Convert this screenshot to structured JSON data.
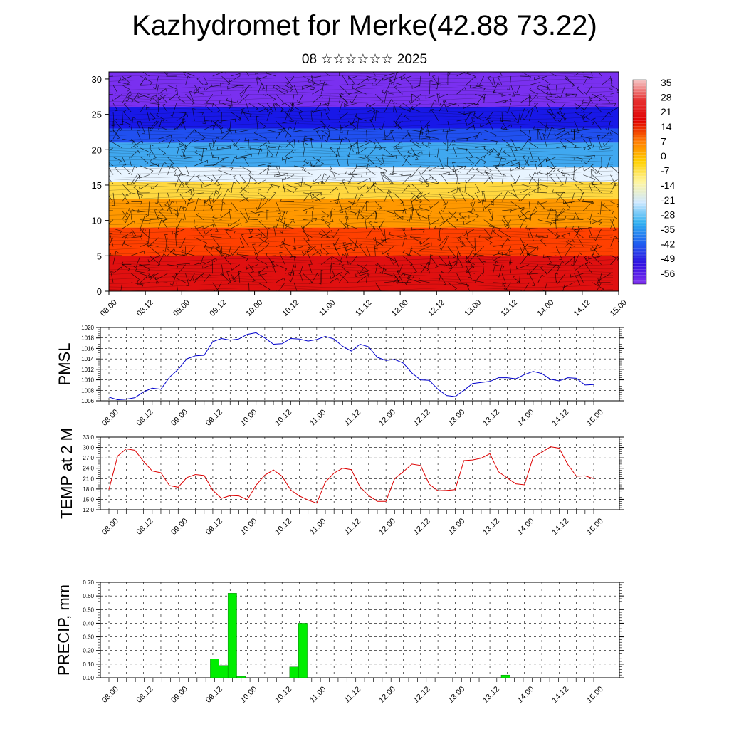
{
  "header": {
    "title": "Kazhydromet for Merke(42.88 73.22)",
    "subtitle": "08 ☆☆☆☆☆☆ 2025"
  },
  "chart_data": [
    {
      "type": "heatmap",
      "y_ticks": [
        0,
        5,
        10,
        15,
        20,
        25,
        30
      ],
      "ylim": [
        0,
        31
      ],
      "x_tick_labels": [
        "08.00",
        "08.12",
        "09.00",
        "09.12",
        "10.00",
        "10.12",
        "11.00",
        "11.12",
        "12.00",
        "12.12",
        "13.00",
        "13.12",
        "14.00",
        "14.12",
        "15.00"
      ],
      "colorbar_labels": [
        "35",
        "28",
        "21",
        "14",
        "7",
        "0",
        "-7",
        "-14",
        "-21",
        "-28",
        "-35",
        "-42",
        "-49",
        "-56"
      ],
      "colorbar_colors": [
        "#f5c8c8",
        "#e63030",
        "#e00000",
        "#ff7a00",
        "#ffd000",
        "#fff5a0",
        "#cfe8ff",
        "#30b0f0",
        "#2060f0",
        "#3010e0",
        "#8030f0"
      ],
      "color_bands": [
        {
          "from": 0,
          "to": 5,
          "color": "#e01010"
        },
        {
          "from": 5,
          "to": 9,
          "color": "#ff4000"
        },
        {
          "from": 9,
          "to": 13,
          "color": "#ff9800"
        },
        {
          "from": 13,
          "to": 15.5,
          "color": "#ffd840"
        },
        {
          "from": 15.5,
          "to": 17.5,
          "color": "#e8f4ff"
        },
        {
          "from": 17.5,
          "to": 21,
          "color": "#40a8f0"
        },
        {
          "from": 21,
          "to": 23,
          "color": "#2050f0"
        },
        {
          "from": 23,
          "to": 26,
          "color": "#1818e8"
        },
        {
          "from": 26,
          "to": 31,
          "color": "#7a30f0"
        }
      ]
    },
    {
      "type": "line",
      "ylabel": "PMSL",
      "ylim": [
        1006,
        1020
      ],
      "y_ticks": [
        1006,
        1008,
        1010,
        1012,
        1014,
        1016,
        1018,
        1020
      ],
      "x_tick_labels": [
        "08.00",
        "08.12",
        "09.00",
        "09.12",
        "10.00",
        "10.12",
        "11.00",
        "11.12",
        "12.00",
        "12.12",
        "13.00",
        "13.12",
        "14.00",
        "14.12",
        "15.00"
      ],
      "color": "#0000cc",
      "values": [
        1006.7,
        1006.2,
        1006.3,
        1006.6,
        1007.7,
        1008.4,
        1008.2,
        1010.5,
        1012.0,
        1014.0,
        1014.6,
        1014.7,
        1017.3,
        1017.9,
        1017.6,
        1017.8,
        1018.7,
        1019.0,
        1018.0,
        1016.8,
        1016.9,
        1017.9,
        1017.8,
        1017.4,
        1017.7,
        1018.3,
        1017.8,
        1016.4,
        1015.5,
        1016.8,
        1016.3,
        1014.3,
        1013.7,
        1013.9,
        1013.2,
        1011.3,
        1010.0,
        1009.9,
        1008.2,
        1007.0,
        1006.8,
        1008.0,
        1009.3,
        1009.5,
        1009.7,
        1010.4,
        1010.4,
        1010.2,
        1011.0,
        1011.6,
        1011.2,
        1010.1,
        1009.8,
        1010.4,
        1010.3,
        1009.0,
        1009.1
      ]
    },
    {
      "type": "line",
      "ylabel": "TEMP at 2 M",
      "ylim": [
        12.0,
        33.0
      ],
      "y_ticks": [
        "12.0",
        "15.0",
        "18.0",
        "21.0",
        "24.0",
        "27.0",
        "30.0",
        "33.0"
      ],
      "x_tick_labels": [
        "08.00",
        "08.12",
        "09.00",
        "09.12",
        "10.00",
        "10.12",
        "11.00",
        "11.12",
        "12.00",
        "12.12",
        "13.00",
        "13.12",
        "14.00",
        "14.12",
        "15.00"
      ],
      "color": "#dd0000",
      "values": [
        17.8,
        27.5,
        29.6,
        29.2,
        26.0,
        23.2,
        22.7,
        19.0,
        18.5,
        21.3,
        22.2,
        21.9,
        17.6,
        15.3,
        16.1,
        16.0,
        14.9,
        19.1,
        22.0,
        23.5,
        21.7,
        17.7,
        16.0,
        14.8,
        13.9,
        20.0,
        22.6,
        24.0,
        23.6,
        18.6,
        16.1,
        14.4,
        14.4,
        21.0,
        23.0,
        25.2,
        24.8,
        19.4,
        17.5,
        17.6,
        17.8,
        26.2,
        26.4,
        26.9,
        28.2,
        23.0,
        21.2,
        19.5,
        19.2,
        27.2,
        28.6,
        30.2,
        29.8,
        25.1,
        21.7,
        21.8,
        21.0
      ]
    },
    {
      "type": "bar",
      "ylabel": "PRECIP, mm",
      "ylim": [
        0,
        0.7
      ],
      "y_ticks": [
        "0.00",
        "0.10",
        "0.20",
        "0.30",
        "0.40",
        "0.50",
        "0.60",
        "0.70"
      ],
      "x_tick_labels": [
        "08.00",
        "08.12",
        "09.00",
        "09.12",
        "10.00",
        "10.12",
        "11.00",
        "11.12",
        "12.00",
        "12.12",
        "13.00",
        "13.12",
        "14.00",
        "14.12",
        "15.00"
      ],
      "color": "#00ee00",
      "values": [
        0,
        0,
        0,
        0,
        0,
        0,
        0,
        0,
        0,
        0,
        0,
        0,
        0.14,
        0.09,
        0.62,
        0.01,
        0,
        0,
        0,
        0,
        0,
        0.08,
        0.4,
        0,
        0,
        0,
        0,
        0,
        0,
        0,
        0,
        0,
        0,
        0,
        0,
        0,
        0,
        0,
        0,
        0,
        0,
        0,
        0,
        0,
        0,
        0.02,
        0,
        0,
        0,
        0,
        0,
        0,
        0,
        0,
        0,
        0
      ]
    }
  ]
}
